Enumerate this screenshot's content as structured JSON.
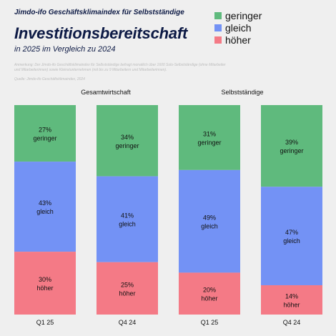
{
  "header": {
    "kicker": "Jimdo-ifo Geschäftsklimaindex für Selbstständige",
    "title": "Investitionsbereitschaft",
    "subtitle": "in 2025 im Vergleich zu 2024"
  },
  "note": {
    "text": "Anmerkung: Der Jimdo-ifo Geschäftsklimaindex für Selbstständige befragt monatlich über 1600 Solo-Selbstständige (ohne Mitarbeiter und Mitarbeiterinnen) sowie Kleinstunternehmen (mit bis zu 9 Mitarbeitern und Mitarbeiterinnen).",
    "source": "Quelle: Jimdo-ifo Geschäftsklimaindex, 2024"
  },
  "legend": [
    {
      "label": "geringer",
      "color": "#5fba7d"
    },
    {
      "label": "gleich",
      "color": "#7392f5"
    },
    {
      "label": "höher",
      "color": "#f47a86"
    }
  ],
  "chart_data": {
    "type": "bar",
    "stacked": true,
    "groups": [
      {
        "label": "Gesamtwirtschaft",
        "bars": [
          {
            "category": "Q1 25",
            "values": {
              "geringer": 27,
              "gleich": 43,
              "höher": 30
            }
          },
          {
            "category": "Q4 24",
            "values": {
              "geringer": 34,
              "gleich": 41,
              "höher": 25
            }
          }
        ]
      },
      {
        "label": "Selbstständige",
        "bars": [
          {
            "category": "Q1 25",
            "values": {
              "geringer": 31,
              "gleich": 49,
              "höher": 20
            }
          },
          {
            "category": "Q4 24",
            "values": {
              "geringer": 39,
              "gleich": 47,
              "höher": 14
            }
          }
        ]
      }
    ],
    "series": [
      {
        "name": "geringer",
        "color": "#5fba7d"
      },
      {
        "name": "gleich",
        "color": "#7392f5"
      },
      {
        "name": "höher",
        "color": "#f47a86"
      }
    ],
    "unit": "%",
    "ylim": [
      0,
      100
    ],
    "legend_position": "top-right",
    "grid": false
  }
}
